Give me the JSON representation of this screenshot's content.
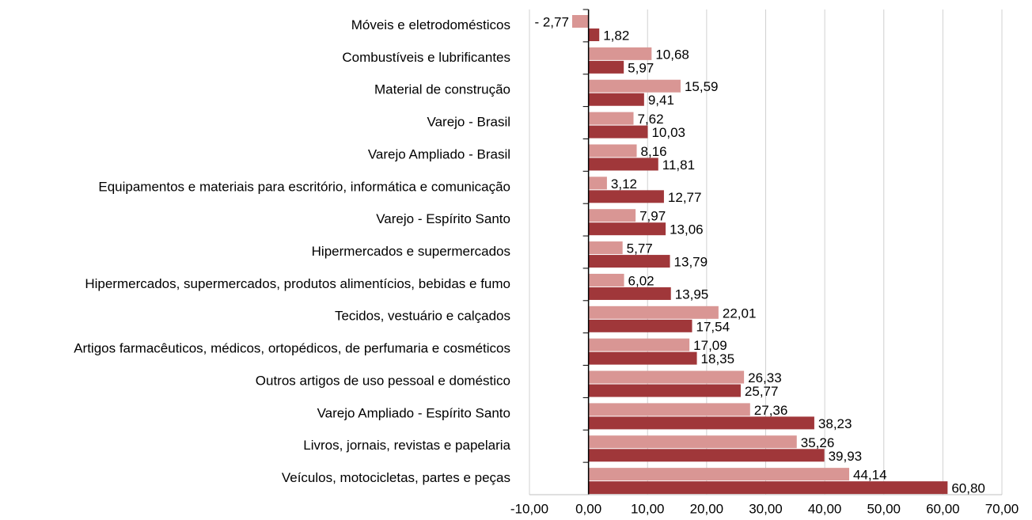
{
  "chart_data": {
    "type": "barh",
    "categories": [
      "Móveis e eletrodomésticos",
      "Combustíveis e lubrificantes",
      "Material de construção",
      "Varejo - Brasil",
      "Varejo Ampliado - Brasil",
      "Equipamentos e materiais para escritório, informática e comunicação",
      "Varejo - Espírito Santo",
      "Hipermercados e supermercados",
      "Hipermercados, supermercados, produtos alimentícios, bebidas e fumo",
      "Tecidos, vestuário e calçados",
      "Artigos farmacêuticos, médicos, ortopédicos, de perfumaria e cosméticos",
      "Outros artigos de uso pessoal e doméstico",
      "Varejo Ampliado - Espírito Santo",
      "Livros, jornais, revistas e papelaria",
      "Veículos, motocicletas, partes e peças"
    ],
    "series": [
      {
        "color": "#d99694",
        "values": [
          -2.77,
          10.68,
          15.59,
          7.62,
          8.16,
          3.12,
          7.97,
          5.77,
          6.02,
          22.01,
          17.09,
          26.33,
          27.36,
          35.26,
          44.14
        ],
        "value_labels": [
          "- 2,77",
          "10,68",
          "15,59",
          "7,62",
          "8,16",
          "3,12",
          "7,97",
          "5,77",
          "6,02",
          "22,01",
          "17,09",
          "26,33",
          "27,36",
          "35,26",
          "44,14"
        ]
      },
      {
        "color": "#a0373a",
        "values": [
          1.82,
          5.97,
          9.41,
          10.03,
          11.81,
          12.77,
          13.06,
          13.79,
          13.95,
          17.54,
          18.35,
          25.77,
          38.23,
          39.93,
          60.8
        ],
        "value_labels": [
          "1,82",
          "5,97",
          "9,41",
          "10,03",
          "11,81",
          "12,77",
          "13,06",
          "13,79",
          "13,95",
          "17,54",
          "18,35",
          "25,77",
          "38,23",
          "39,93",
          "60,80"
        ]
      }
    ],
    "xlim": [
      -10,
      70
    ],
    "xticks": [
      {
        "value": -10,
        "label": "-10,00"
      },
      {
        "value": 0,
        "label": "0,00"
      },
      {
        "value": 10,
        "label": "10,00"
      },
      {
        "value": 20,
        "label": "20,00"
      },
      {
        "value": 30,
        "label": "30,00"
      },
      {
        "value": 40,
        "label": "40,00"
      },
      {
        "value": 50,
        "label": "50,00"
      },
      {
        "value": 60,
        "label": "60,00"
      },
      {
        "value": 70,
        "label": "70,00"
      }
    ],
    "grid": true
  }
}
